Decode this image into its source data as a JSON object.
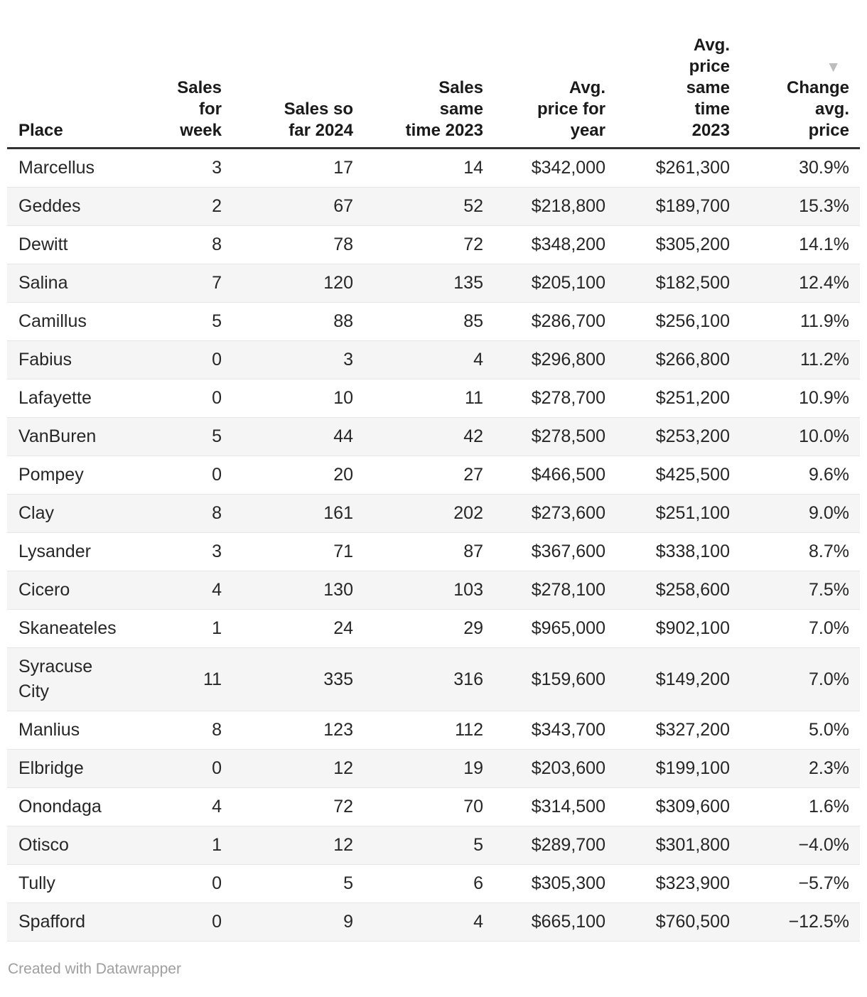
{
  "chart_data": {
    "type": "table",
    "columns": [
      {
        "label": "Place"
      },
      {
        "label": "Sales\nfor\nweek"
      },
      {
        "label": "Sales so\nfar 2024"
      },
      {
        "label": "Sales\nsame\ntime 2023"
      },
      {
        "label": "Avg.\nprice for\nyear"
      },
      {
        "label": "Avg.\nprice\nsame\ntime\n2023"
      },
      {
        "label": "Change\navg.\nprice"
      }
    ],
    "sort": {
      "column": "Change avg. price",
      "direction": "descending",
      "arrow": "▼"
    },
    "rows": [
      [
        "Marcellus",
        "3",
        "17",
        "14",
        "$342,000",
        "$261,300",
        "30.9%"
      ],
      [
        "Geddes",
        "2",
        "67",
        "52",
        "$218,800",
        "$189,700",
        "15.3%"
      ],
      [
        "Dewitt",
        "8",
        "78",
        "72",
        "$348,200",
        "$305,200",
        "14.1%"
      ],
      [
        "Salina",
        "7",
        "120",
        "135",
        "$205,100",
        "$182,500",
        "12.4%"
      ],
      [
        "Camillus",
        "5",
        "88",
        "85",
        "$286,700",
        "$256,100",
        "11.9%"
      ],
      [
        "Fabius",
        "0",
        "3",
        "4",
        "$296,800",
        "$266,800",
        "11.2%"
      ],
      [
        "Lafayette",
        "0",
        "10",
        "11",
        "$278,700",
        "$251,200",
        "10.9%"
      ],
      [
        "VanBuren",
        "5",
        "44",
        "42",
        "$278,500",
        "$253,200",
        "10.0%"
      ],
      [
        "Pompey",
        "0",
        "20",
        "27",
        "$466,500",
        "$425,500",
        "9.6%"
      ],
      [
        "Clay",
        "8",
        "161",
        "202",
        "$273,600",
        "$251,100",
        "9.0%"
      ],
      [
        "Lysander",
        "3",
        "71",
        "87",
        "$367,600",
        "$338,100",
        "8.7%"
      ],
      [
        "Cicero",
        "4",
        "130",
        "103",
        "$278,100",
        "$258,600",
        "7.5%"
      ],
      [
        "Skaneateles",
        "1",
        "24",
        "29",
        "$965,000",
        "$902,100",
        "7.0%"
      ],
      [
        "Syracuse\nCity",
        "11",
        "335",
        "316",
        "$159,600",
        "$149,200",
        "7.0%"
      ],
      [
        "Manlius",
        "8",
        "123",
        "112",
        "$343,700",
        "$327,200",
        "5.0%"
      ],
      [
        "Elbridge",
        "0",
        "12",
        "19",
        "$203,600",
        "$199,100",
        "2.3%"
      ],
      [
        "Onondaga",
        "4",
        "72",
        "70",
        "$314,500",
        "$309,600",
        "1.6%"
      ],
      [
        "Otisco",
        "1",
        "12",
        "5",
        "$289,700",
        "$301,800",
        "−4.0%"
      ],
      [
        "Tully",
        "0",
        "5",
        "6",
        "$305,300",
        "$323,900",
        "−5.7%"
      ],
      [
        "Spafford",
        "0",
        "9",
        "4",
        "$665,100",
        "$760,500",
        "−12.5%"
      ]
    ]
  },
  "footer": {
    "attribution": "Created with Datawrapper"
  },
  "colors": {
    "header_rule": "#333333",
    "row_stripe": "#f5f5f5",
    "row_border": "#e6e6e6",
    "body_text": "#262626",
    "header_text": "#1a1a1a",
    "sort_arrow": "#bdbdbd",
    "footer_text": "#9e9e9e"
  }
}
